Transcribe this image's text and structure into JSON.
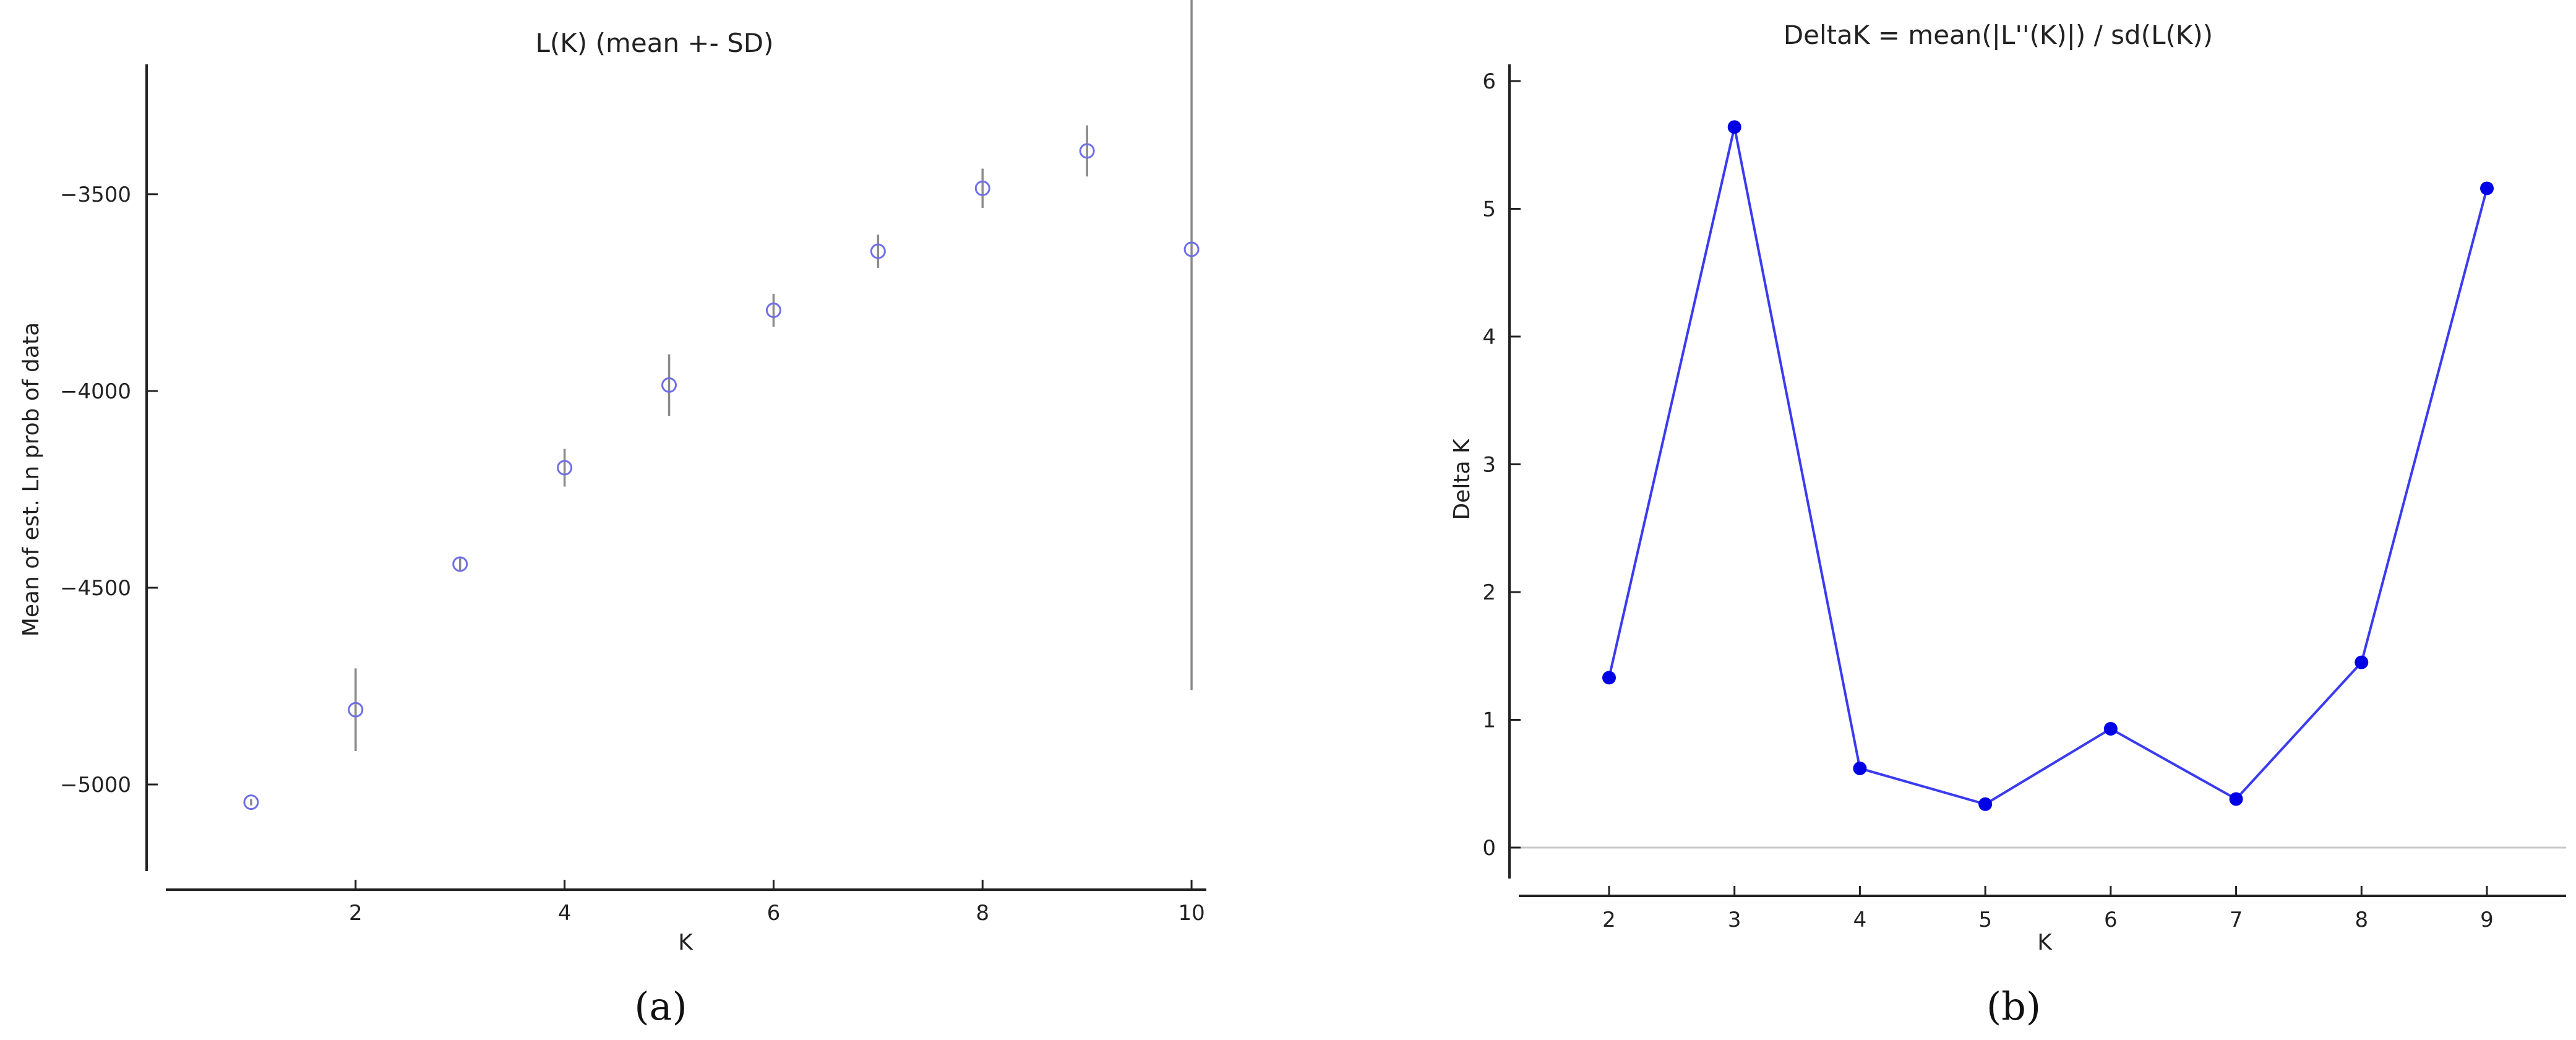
{
  "chart_data": [
    {
      "type": "scatter",
      "title": "L(K) (mean +- SD)",
      "xlabel": "K",
      "ylabel": "Mean of est. Ln prob of data",
      "panel_label": "a",
      "xlim": [
        0,
        11
      ],
      "ylim": [
        -5220,
        -3170
      ],
      "xticks": [
        2,
        4,
        6,
        8,
        10
      ],
      "yticks": [
        -5000,
        -4500,
        -4000,
        -3500
      ],
      "ytick_labels": [
        "−5000",
        "−4500",
        "−4000",
        "−3500"
      ],
      "grid": false,
      "marker_color": "#6f6fe6",
      "errorbar_color": "#8a8a8a",
      "series": [
        {
          "x": [
            1,
            2,
            3,
            4,
            5,
            6,
            7,
            8,
            9,
            10
          ],
          "y": [
            -5045,
            -4810,
            -4440,
            -4195,
            -3985,
            -3795,
            -3645,
            -3485,
            -3390,
            -3640
          ],
          "sd": [
            8,
            105,
            18,
            48,
            78,
            42,
            42,
            50,
            65,
            1120
          ]
        }
      ]
    },
    {
      "type": "line",
      "title": "DeltaK = mean(|L''(K)|) / sd(L(K))",
      "xlabel": "K",
      "ylabel": "Delta K",
      "panel_label": "b",
      "xlim": [
        1.3,
        9.7
      ],
      "ylim": [
        -0.35,
        6.15
      ],
      "xticks": [
        2,
        3,
        4,
        5,
        6,
        7,
        8,
        9
      ],
      "yticks": [
        0,
        1,
        2,
        3,
        4,
        5,
        6
      ],
      "grid": false,
      "zero_line": true,
      "line_color": "#3b3bf0",
      "marker_color": "#0000e6",
      "series": [
        {
          "x": [
            2,
            3,
            4,
            5,
            6,
            7,
            8,
            9
          ],
          "y": [
            1.33,
            5.64,
            0.62,
            0.34,
            0.93,
            0.38,
            1.45,
            5.16
          ]
        }
      ]
    }
  ]
}
